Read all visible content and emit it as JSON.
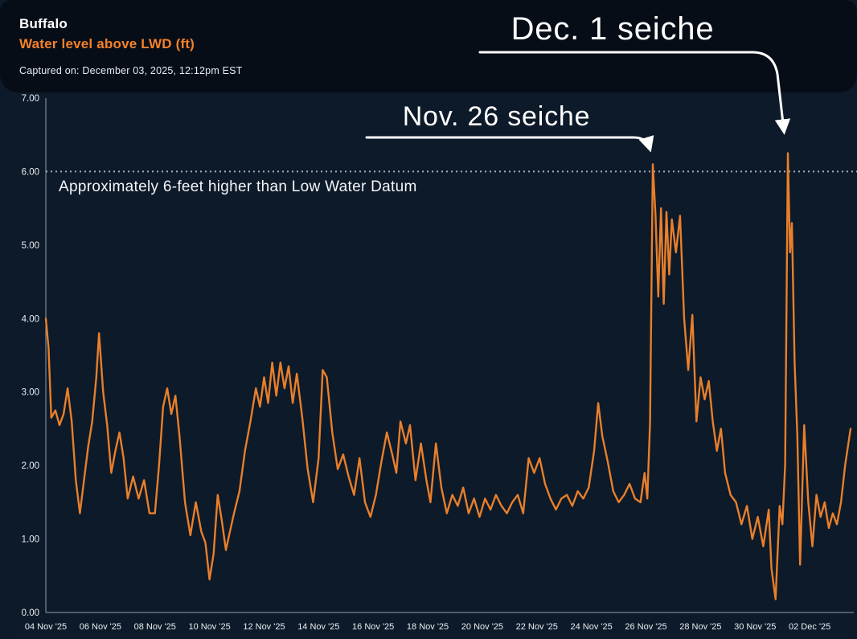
{
  "header": {
    "title": "Buffalo",
    "subtitle": "Water level above LWD (ft)",
    "captured": "Captured on: December 03, 2025, 12:12pm EST"
  },
  "annotations": {
    "dec1": "Dec. 1 seiche",
    "nov26": "Nov. 26 seiche",
    "datum_note": "Approximately 6-feet higher than Low Water Datum"
  },
  "colors": {
    "background": "#0d1a29",
    "banner": "#070d17",
    "line": "#e87f2b",
    "accent_orange": "#f58229",
    "reference_dotted": "#9fb0c0",
    "axis": "#93a1b0",
    "text": "#ffffff"
  },
  "chart_data": {
    "type": "line",
    "title": "Buffalo — Water level above LWD (ft)",
    "xlabel": "",
    "ylabel": "Water level above LWD (ft)",
    "ylim": [
      0,
      7
    ],
    "x_domain_days": [
      0,
      29.5
    ],
    "x_domain_note": "day 0 = 04 Nov 2025 00:00, last point = 03 Dec 2025 ~12:00",
    "grid": "off",
    "legend": "none",
    "y_ticks": [
      {
        "value": 0,
        "label": "0.00"
      },
      {
        "value": 1,
        "label": "1.00"
      },
      {
        "value": 2,
        "label": "2.00"
      },
      {
        "value": 3,
        "label": "3.00"
      },
      {
        "value": 4,
        "label": "4.00"
      },
      {
        "value": 5,
        "label": "5.00"
      },
      {
        "value": 6,
        "label": "6.00"
      },
      {
        "value": 7,
        "label": "7.00"
      }
    ],
    "x_ticks": [
      {
        "day": 0,
        "label": "04 Nov '25"
      },
      {
        "day": 2,
        "label": "06 Nov '25"
      },
      {
        "day": 4,
        "label": "08 Nov '25"
      },
      {
        "day": 6,
        "label": "10 Nov '25"
      },
      {
        "day": 8,
        "label": "12 Nov '25"
      },
      {
        "day": 10,
        "label": "14 Nov '25"
      },
      {
        "day": 12,
        "label": "16 Nov '25"
      },
      {
        "day": 14,
        "label": "18 Nov '25"
      },
      {
        "day": 16,
        "label": "20 Nov '25"
      },
      {
        "day": 18,
        "label": "22 Nov '25"
      },
      {
        "day": 20,
        "label": "24 Nov '25"
      },
      {
        "day": 22,
        "label": "26 Nov '25"
      },
      {
        "day": 24,
        "label": "28 Nov '25"
      },
      {
        "day": 26,
        "label": "30 Nov '25"
      },
      {
        "day": 28,
        "label": "02 Dec '25"
      }
    ],
    "reference_line": {
      "value": 6.0,
      "style": "dotted",
      "label": "Approximately 6-feet higher than Low Water Datum"
    },
    "events": [
      {
        "label": "Nov. 26 seiche",
        "day": 22.25,
        "peak_ft": 6.1
      },
      {
        "label": "Dec. 1 seiche",
        "day": 27.2,
        "peak_ft": 6.25
      }
    ],
    "series": [
      {
        "name": "Water level above LWD (ft)",
        "points": [
          [
            0,
            4.0
          ],
          [
            0.1,
            3.6
          ],
          [
            0.2,
            2.65
          ],
          [
            0.35,
            2.75
          ],
          [
            0.5,
            2.55
          ],
          [
            0.65,
            2.7
          ],
          [
            0.8,
            3.05
          ],
          [
            0.95,
            2.6
          ],
          [
            1.1,
            1.8
          ],
          [
            1.25,
            1.35
          ],
          [
            1.4,
            1.8
          ],
          [
            1.55,
            2.25
          ],
          [
            1.7,
            2.6
          ],
          [
            1.85,
            3.2
          ],
          [
            1.95,
            3.8
          ],
          [
            2.1,
            3.0
          ],
          [
            2.25,
            2.55
          ],
          [
            2.4,
            1.9
          ],
          [
            2.55,
            2.2
          ],
          [
            2.7,
            2.45
          ],
          [
            2.85,
            2.1
          ],
          [
            3.0,
            1.55
          ],
          [
            3.2,
            1.85
          ],
          [
            3.4,
            1.55
          ],
          [
            3.6,
            1.8
          ],
          [
            3.8,
            1.35
          ],
          [
            4.0,
            1.35
          ],
          [
            4.15,
            2.0
          ],
          [
            4.3,
            2.8
          ],
          [
            4.45,
            3.05
          ],
          [
            4.6,
            2.7
          ],
          [
            4.75,
            2.95
          ],
          [
            4.9,
            2.4
          ],
          [
            5.1,
            1.5
          ],
          [
            5.3,
            1.05
          ],
          [
            5.5,
            1.5
          ],
          [
            5.7,
            1.1
          ],
          [
            5.85,
            0.95
          ],
          [
            6.0,
            0.45
          ],
          [
            6.15,
            0.8
          ],
          [
            6.3,
            1.6
          ],
          [
            6.45,
            1.25
          ],
          [
            6.6,
            0.85
          ],
          [
            6.75,
            1.1
          ],
          [
            6.9,
            1.35
          ],
          [
            7.1,
            1.65
          ],
          [
            7.3,
            2.2
          ],
          [
            7.5,
            2.6
          ],
          [
            7.7,
            3.05
          ],
          [
            7.85,
            2.8
          ],
          [
            8.0,
            3.2
          ],
          [
            8.15,
            2.85
          ],
          [
            8.3,
            3.4
          ],
          [
            8.45,
            2.95
          ],
          [
            8.6,
            3.4
          ],
          [
            8.75,
            3.05
          ],
          [
            8.9,
            3.35
          ],
          [
            9.05,
            2.85
          ],
          [
            9.2,
            3.25
          ],
          [
            9.4,
            2.65
          ],
          [
            9.6,
            1.95
          ],
          [
            9.8,
            1.5
          ],
          [
            10.0,
            2.1
          ],
          [
            10.15,
            3.3
          ],
          [
            10.3,
            3.2
          ],
          [
            10.5,
            2.45
          ],
          [
            10.7,
            1.95
          ],
          [
            10.9,
            2.15
          ],
          [
            11.1,
            1.85
          ],
          [
            11.3,
            1.6
          ],
          [
            11.5,
            2.1
          ],
          [
            11.7,
            1.5
          ],
          [
            11.9,
            1.3
          ],
          [
            12.1,
            1.6
          ],
          [
            12.3,
            2.05
          ],
          [
            12.5,
            2.45
          ],
          [
            12.7,
            2.15
          ],
          [
            12.85,
            1.9
          ],
          [
            13.0,
            2.6
          ],
          [
            13.2,
            2.3
          ],
          [
            13.35,
            2.55
          ],
          [
            13.55,
            1.8
          ],
          [
            13.75,
            2.3
          ],
          [
            13.95,
            1.8
          ],
          [
            14.1,
            1.5
          ],
          [
            14.3,
            2.3
          ],
          [
            14.5,
            1.7
          ],
          [
            14.7,
            1.35
          ],
          [
            14.9,
            1.6
          ],
          [
            15.1,
            1.45
          ],
          [
            15.3,
            1.7
          ],
          [
            15.5,
            1.35
          ],
          [
            15.7,
            1.55
          ],
          [
            15.9,
            1.3
          ],
          [
            16.1,
            1.55
          ],
          [
            16.3,
            1.4
          ],
          [
            16.5,
            1.6
          ],
          [
            16.7,
            1.45
          ],
          [
            16.9,
            1.35
          ],
          [
            17.1,
            1.5
          ],
          [
            17.3,
            1.6
          ],
          [
            17.5,
            1.35
          ],
          [
            17.7,
            2.1
          ],
          [
            17.9,
            1.9
          ],
          [
            18.1,
            2.1
          ],
          [
            18.3,
            1.75
          ],
          [
            18.5,
            1.55
          ],
          [
            18.7,
            1.4
          ],
          [
            18.9,
            1.55
          ],
          [
            19.1,
            1.6
          ],
          [
            19.3,
            1.45
          ],
          [
            19.5,
            1.65
          ],
          [
            19.7,
            1.55
          ],
          [
            19.9,
            1.7
          ],
          [
            20.1,
            2.2
          ],
          [
            20.25,
            2.85
          ],
          [
            20.4,
            2.4
          ],
          [
            20.6,
            2.05
          ],
          [
            20.8,
            1.65
          ],
          [
            21.0,
            1.5
          ],
          [
            21.2,
            1.6
          ],
          [
            21.4,
            1.75
          ],
          [
            21.6,
            1.55
          ],
          [
            21.8,
            1.5
          ],
          [
            21.95,
            1.9
          ],
          [
            22.05,
            1.55
          ],
          [
            22.15,
            2.6
          ],
          [
            22.25,
            6.1
          ],
          [
            22.35,
            5.4
          ],
          [
            22.45,
            4.3
          ],
          [
            22.55,
            5.5
          ],
          [
            22.65,
            4.2
          ],
          [
            22.75,
            5.45
          ],
          [
            22.85,
            4.6
          ],
          [
            22.95,
            5.35
          ],
          [
            23.1,
            4.9
          ],
          [
            23.25,
            5.4
          ],
          [
            23.4,
            4.0
          ],
          [
            23.55,
            3.3
          ],
          [
            23.7,
            4.05
          ],
          [
            23.85,
            2.6
          ],
          [
            24.0,
            3.2
          ],
          [
            24.15,
            2.9
          ],
          [
            24.3,
            3.15
          ],
          [
            24.45,
            2.6
          ],
          [
            24.6,
            2.2
          ],
          [
            24.75,
            2.5
          ],
          [
            24.9,
            1.9
          ],
          [
            25.1,
            1.6
          ],
          [
            25.3,
            1.5
          ],
          [
            25.5,
            1.2
          ],
          [
            25.7,
            1.45
          ],
          [
            25.9,
            1.0
          ],
          [
            26.1,
            1.3
          ],
          [
            26.3,
            0.9
          ],
          [
            26.5,
            1.4
          ],
          [
            26.6,
            0.6
          ],
          [
            26.75,
            0.18
          ],
          [
            26.9,
            1.45
          ],
          [
            27.0,
            1.2
          ],
          [
            27.1,
            2.0
          ],
          [
            27.2,
            6.25
          ],
          [
            27.28,
            4.9
          ],
          [
            27.35,
            5.3
          ],
          [
            27.45,
            3.4
          ],
          [
            27.55,
            2.4
          ],
          [
            27.65,
            0.65
          ],
          [
            27.8,
            2.55
          ],
          [
            27.95,
            1.5
          ],
          [
            28.1,
            0.9
          ],
          [
            28.25,
            1.6
          ],
          [
            28.4,
            1.3
          ],
          [
            28.55,
            1.5
          ],
          [
            28.7,
            1.15
          ],
          [
            28.85,
            1.35
          ],
          [
            29.0,
            1.2
          ],
          [
            29.15,
            1.5
          ],
          [
            29.3,
            2.0
          ],
          [
            29.5,
            2.5
          ]
        ]
      }
    ]
  }
}
